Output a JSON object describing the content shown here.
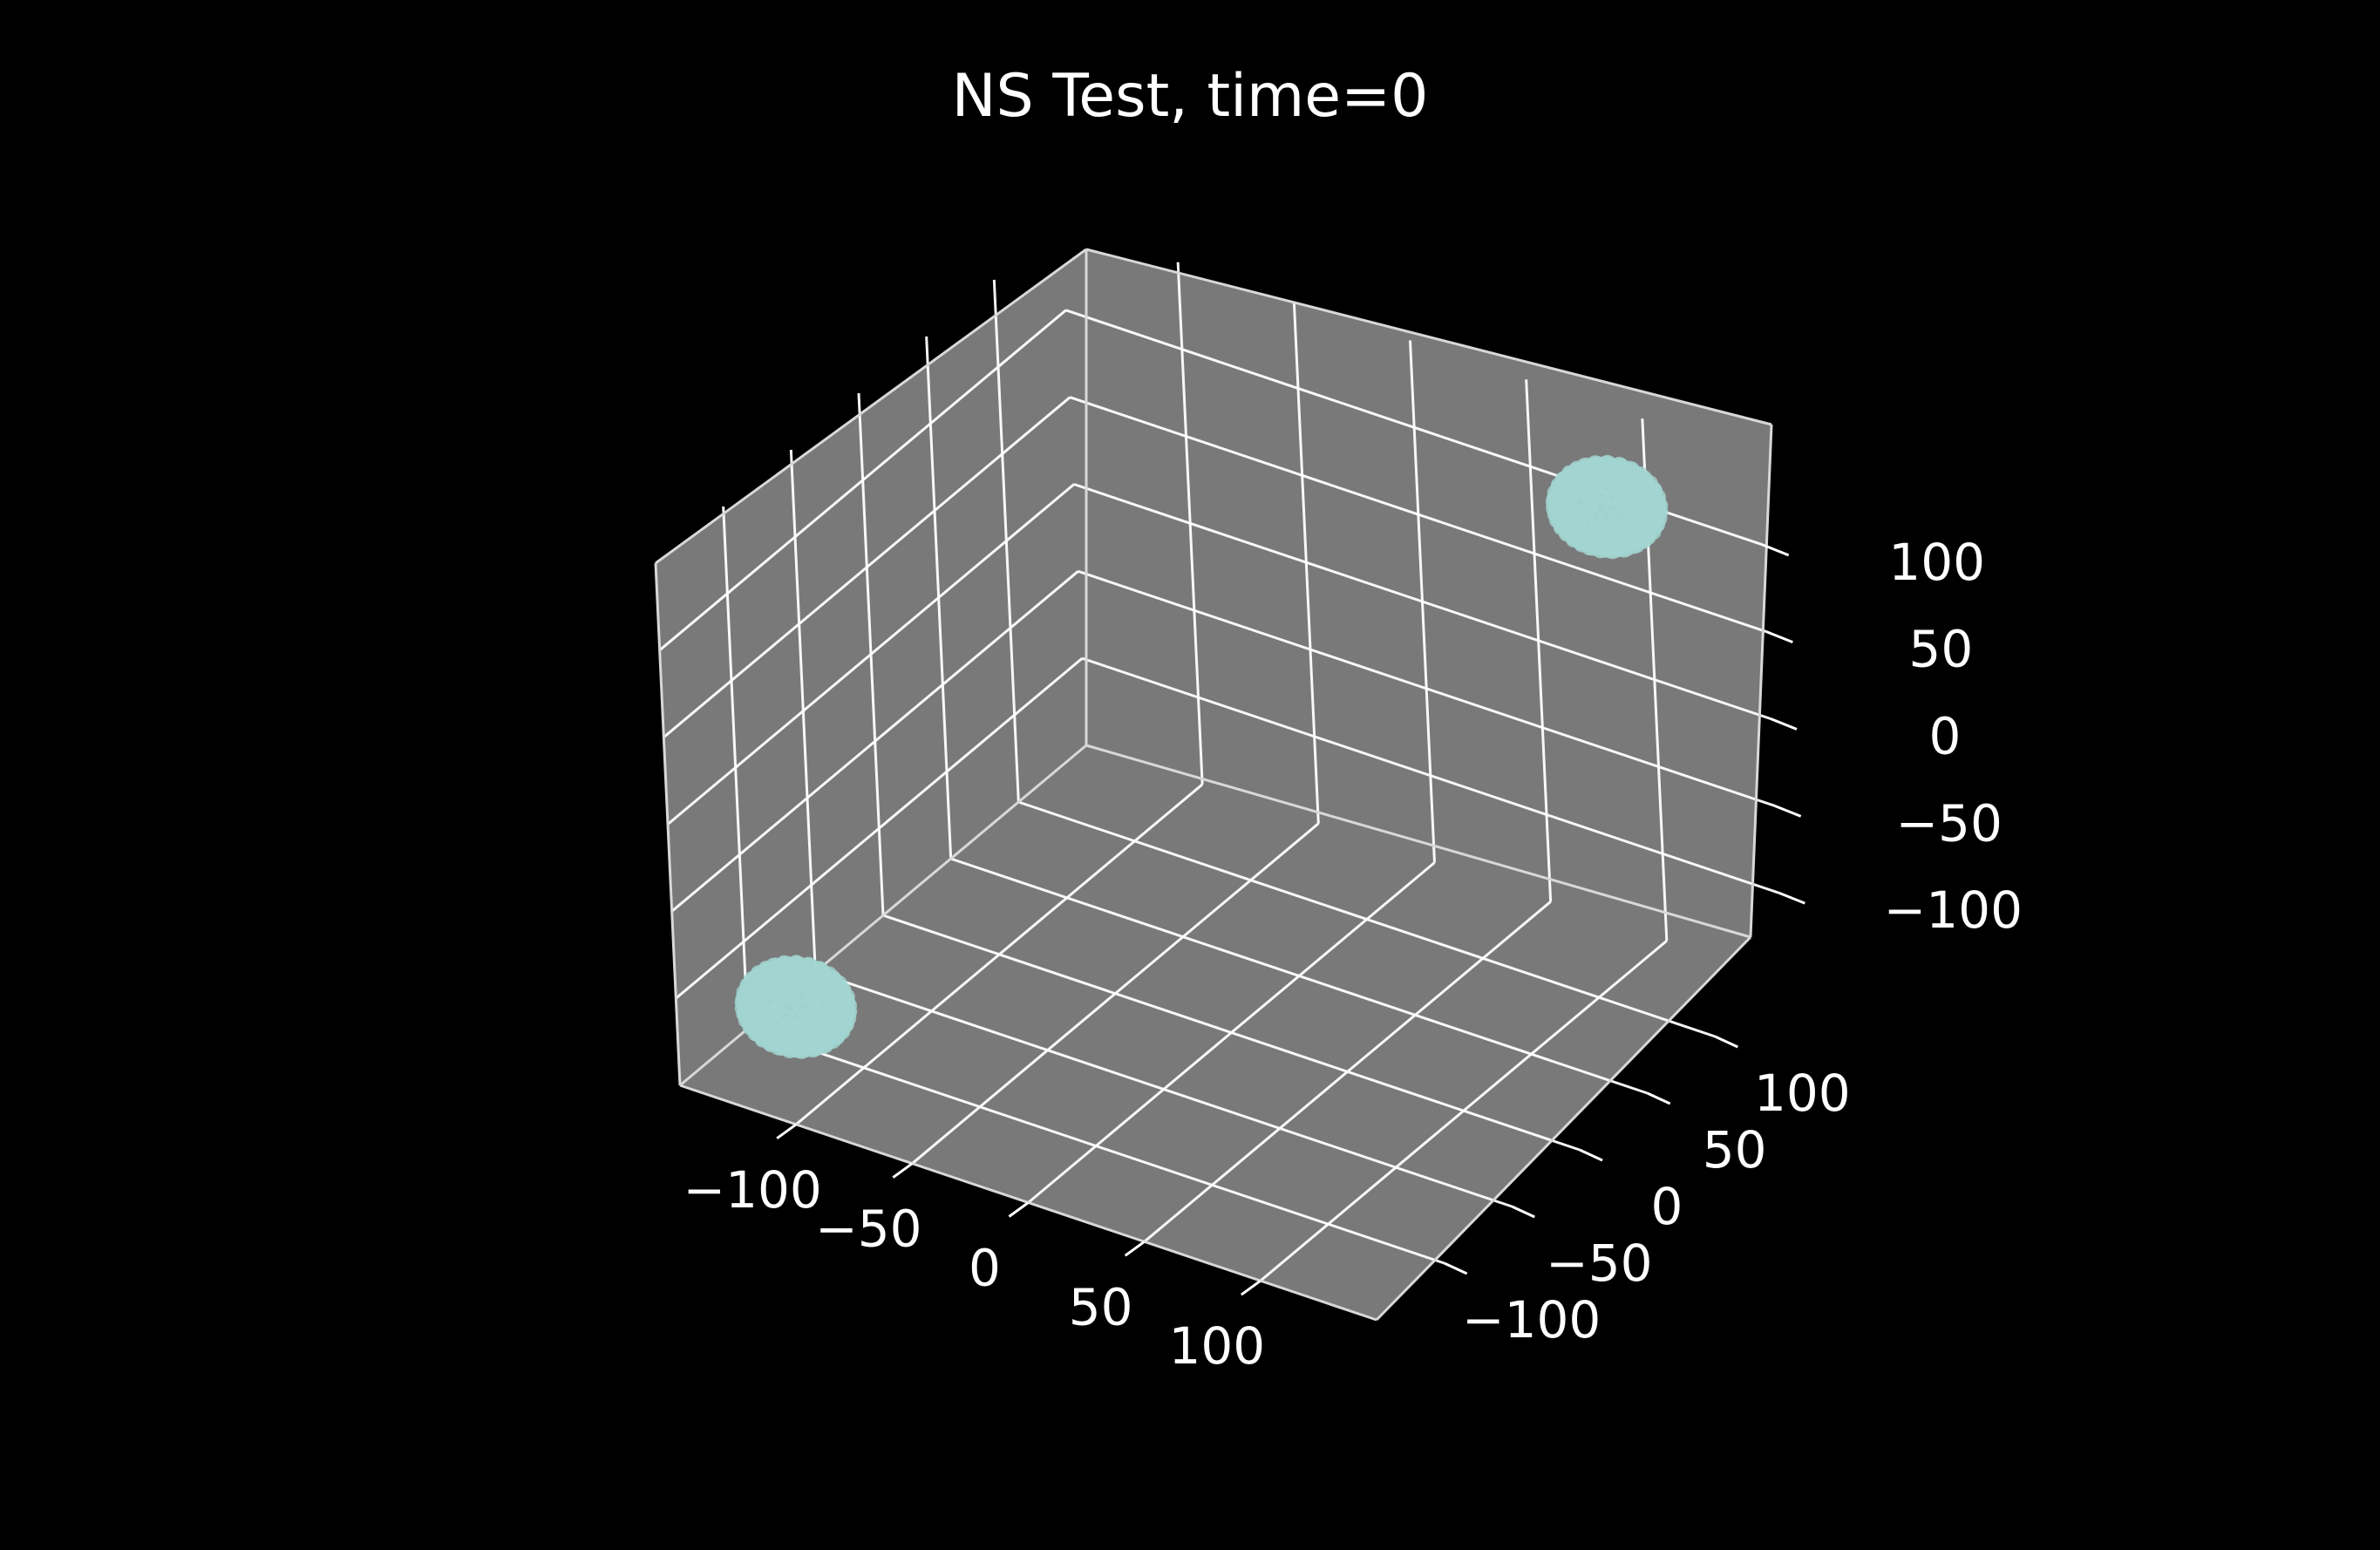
{
  "chart_data": {
    "type": "scatter",
    "projection": "3d",
    "title": "NS Test, time=0",
    "xlabel": "",
    "ylabel": "",
    "zlabel": "",
    "xlim": [
      -150,
      150
    ],
    "ylim": [
      -150,
      150
    ],
    "zlim": [
      -150,
      150
    ],
    "grid": true,
    "legend": "none",
    "background_color": "#000000",
    "pane_color": "#808080",
    "grid_color": "#ffffff",
    "text_color": "#ffffff",
    "marker_color": "#a3d5d1",
    "x_ticks": [
      {
        "value": -100,
        "label": "−100"
      },
      {
        "value": -50,
        "label": "−50"
      },
      {
        "value": 0,
        "label": "0"
      },
      {
        "value": 50,
        "label": "50"
      },
      {
        "value": 100,
        "label": "100"
      }
    ],
    "y_ticks": [
      {
        "value": -100,
        "label": "−100"
      },
      {
        "value": -50,
        "label": "−50"
      },
      {
        "value": 0,
        "label": "0"
      },
      {
        "value": 50,
        "label": "50"
      },
      {
        "value": 100,
        "label": "100"
      }
    ],
    "z_ticks": [
      {
        "value": -100,
        "label": "−100"
      },
      {
        "value": -50,
        "label": "−50"
      },
      {
        "value": 0,
        "label": "0"
      },
      {
        "value": 50,
        "label": "50"
      },
      {
        "value": 100,
        "label": "100"
      }
    ],
    "clusters": [
      {
        "center": [
          -110,
          -130,
          -100
        ],
        "radius": 20,
        "color": "#a3d5d1"
      },
      {
        "center": [
          95,
          130,
          110
        ],
        "radius": 20,
        "color": "#a3d5d1"
      }
    ]
  }
}
